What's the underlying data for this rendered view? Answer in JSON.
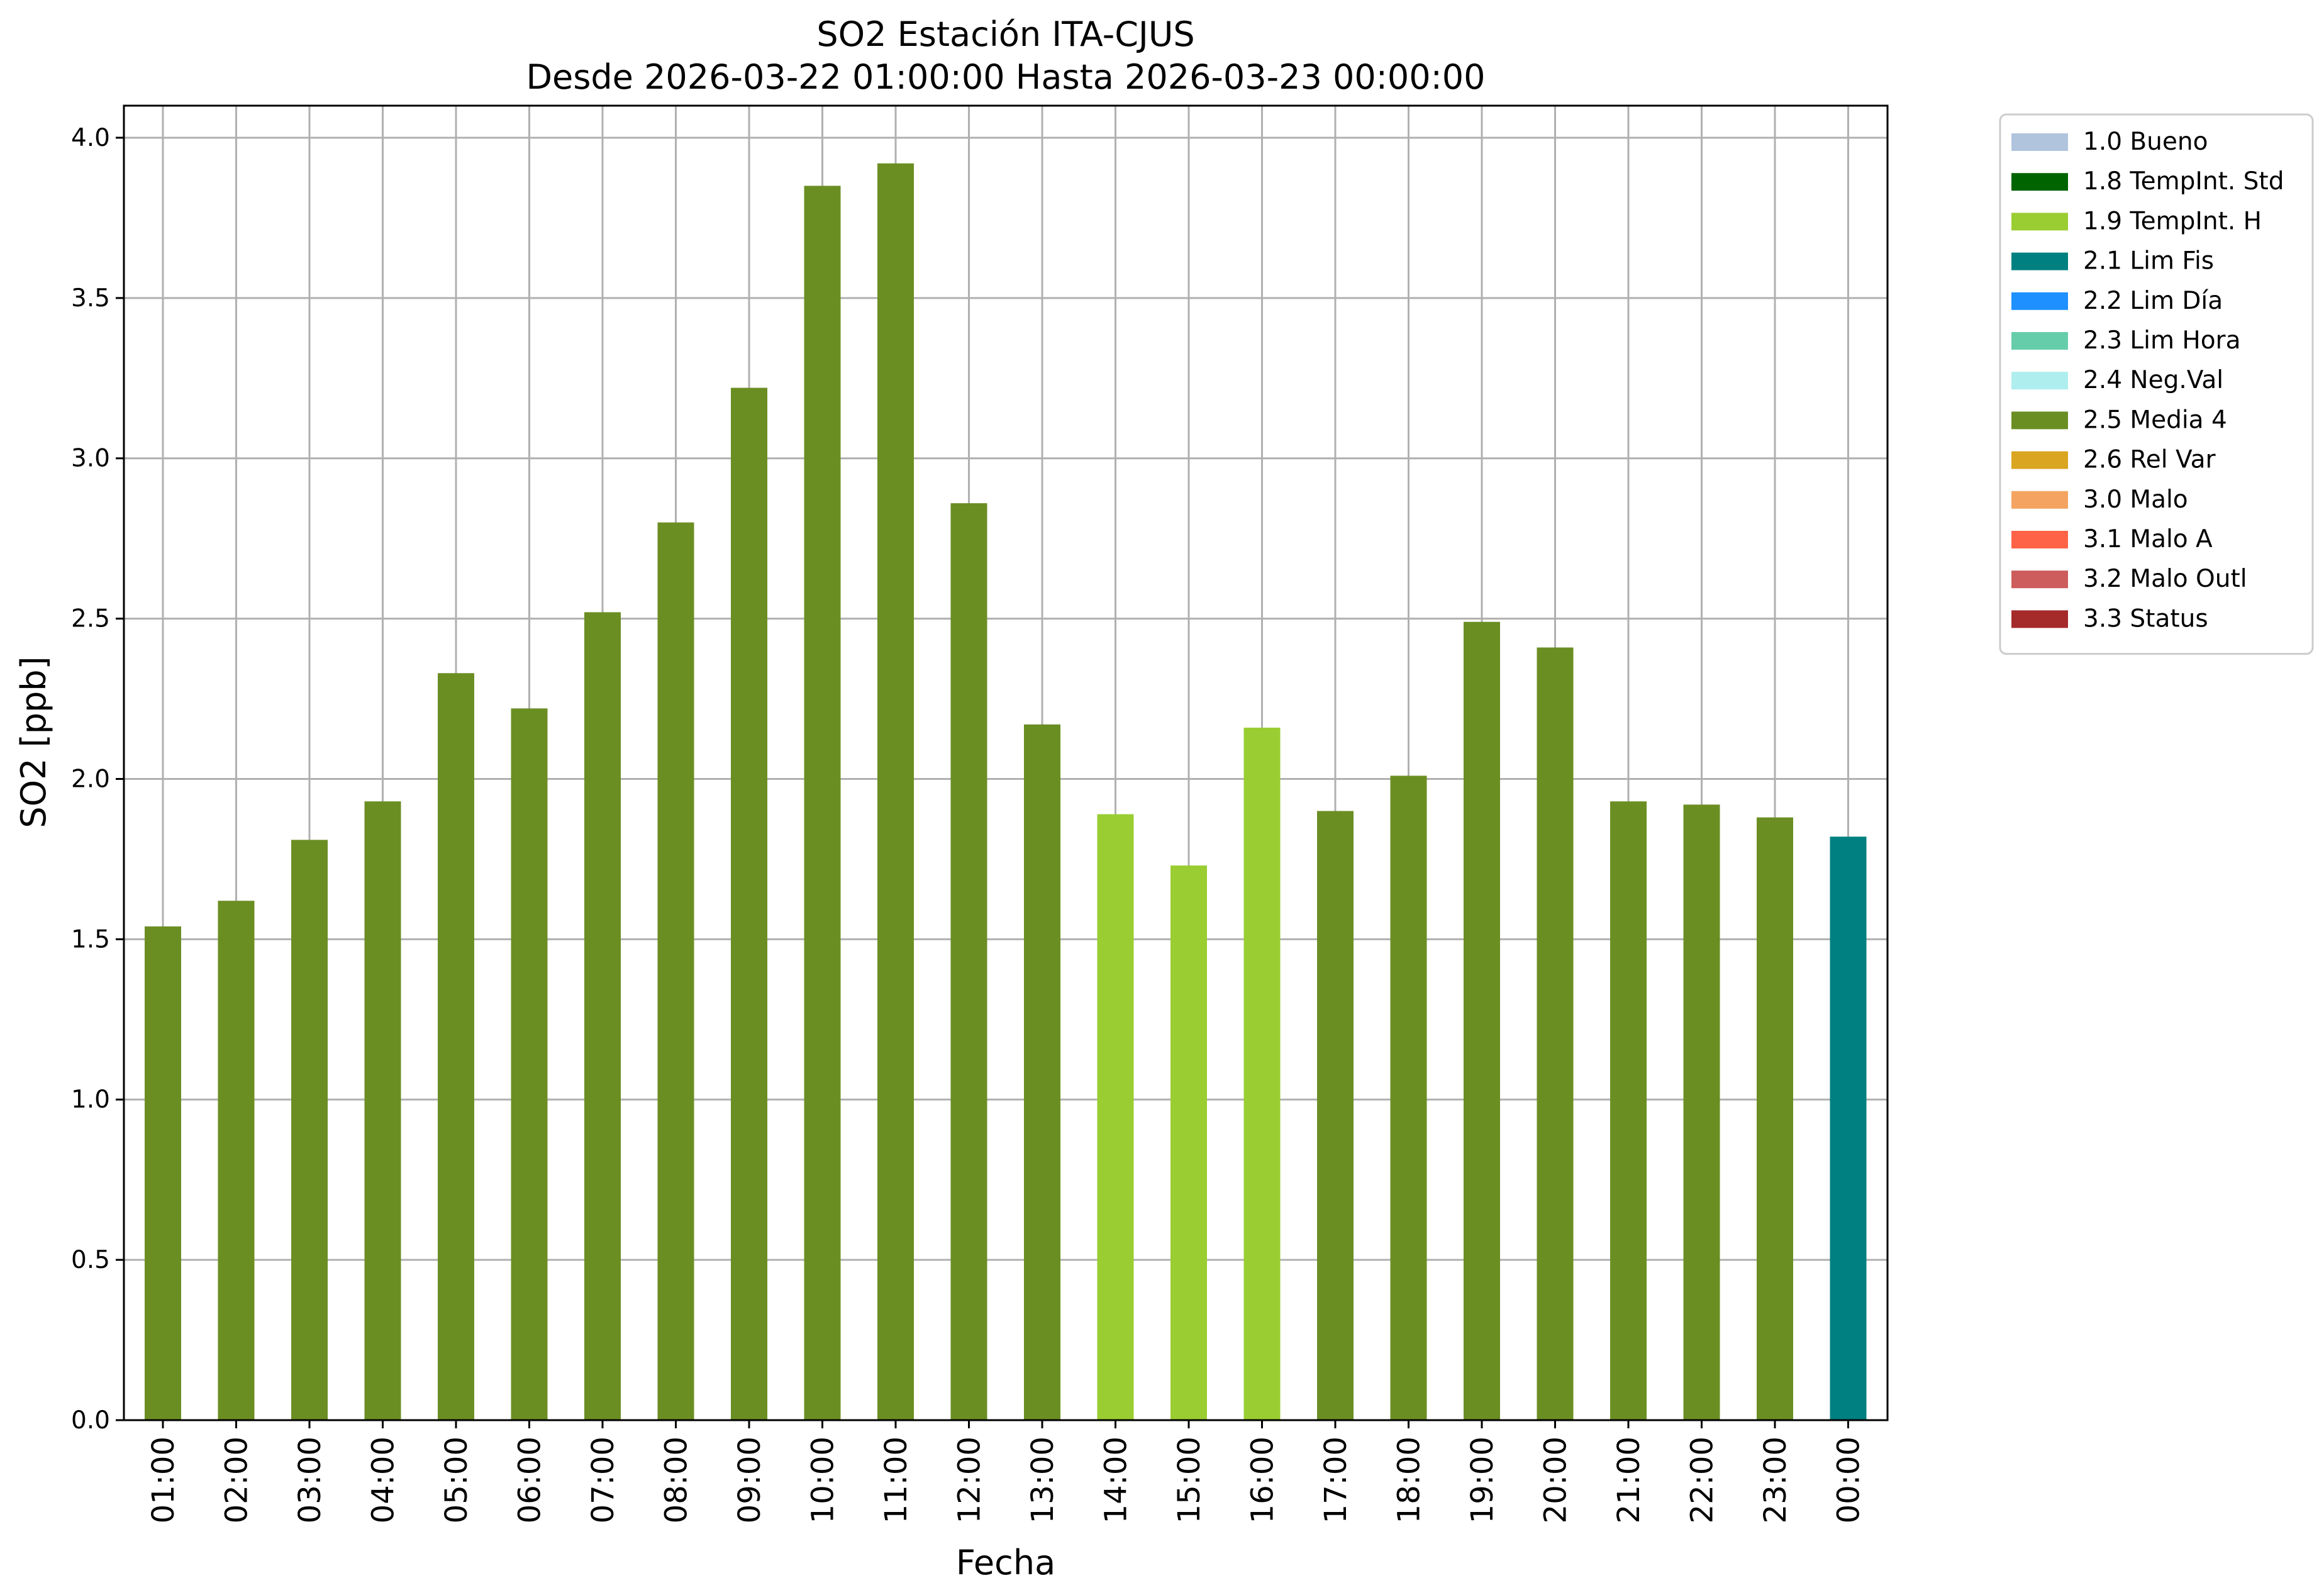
{
  "chart_data": {
    "type": "bar",
    "title": "SO2 Estación ITA-CJUS",
    "subtitle": "Desde 2026-03-22 01:00:00 Hasta 2026-03-23 00:00:00",
    "xlabel": "Fecha",
    "ylabel": "SO2 [ppb]",
    "ylim": [
      0,
      4.1
    ],
    "yticks": [
      "0.0",
      "0.5",
      "1.0",
      "1.5",
      "2.0",
      "2.5",
      "3.0",
      "3.5",
      "4.0"
    ],
    "grid": true,
    "legend_position": "outside-top-right",
    "categories": [
      "01:00",
      "02:00",
      "03:00",
      "04:00",
      "05:00",
      "06:00",
      "07:00",
      "08:00",
      "09:00",
      "10:00",
      "11:00",
      "12:00",
      "13:00",
      "14:00",
      "15:00",
      "16:00",
      "17:00",
      "18:00",
      "19:00",
      "20:00",
      "21:00",
      "22:00",
      "23:00",
      "00:00"
    ],
    "values": [
      1.54,
      1.62,
      1.81,
      1.93,
      2.33,
      2.22,
      2.52,
      2.8,
      3.22,
      3.85,
      3.92,
      2.86,
      2.17,
      1.89,
      1.73,
      2.16,
      1.9,
      2.01,
      2.49,
      2.41,
      1.93,
      1.92,
      1.88,
      1.82
    ],
    "flags": [
      "2.5 Media 4",
      "2.5 Media 4",
      "2.5 Media 4",
      "2.5 Media 4",
      "2.5 Media 4",
      "2.5 Media 4",
      "2.5 Media 4",
      "2.5 Media 4",
      "2.5 Media 4",
      "2.5 Media 4",
      "2.5 Media 4",
      "2.5 Media 4",
      "2.5 Media 4",
      "1.9 TempInt. H",
      "1.9 TempInt. H",
      "1.9 TempInt. H",
      "2.5 Media 4",
      "2.5 Media 4",
      "2.5 Media 4",
      "2.5 Media 4",
      "2.5 Media 4",
      "2.5 Media 4",
      "2.5 Media 4",
      "2.1 Lim Fis"
    ],
    "legend": [
      {
        "label": "1.0 Bueno",
        "color": "#b0c4de"
      },
      {
        "label": "1.8 TempInt. Std",
        "color": "#006400"
      },
      {
        "label": "1.9 TempInt. H",
        "color": "#9acd32"
      },
      {
        "label": "2.1 Lim Fis",
        "color": "#008080"
      },
      {
        "label": "2.2 Lim Día",
        "color": "#1e90ff"
      },
      {
        "label": "2.3 Lim Hora",
        "color": "#66cdaa"
      },
      {
        "label": "2.4 Neg.Val",
        "color": "#afeeee"
      },
      {
        "label": "2.5 Media 4",
        "color": "#6b8e23"
      },
      {
        "label": "2.6 Rel Var",
        "color": "#daa520"
      },
      {
        "label": "3.0 Malo",
        "color": "#f4a460"
      },
      {
        "label": "3.1 Malo A",
        "color": "#ff6347"
      },
      {
        "label": "3.2 Malo Outl",
        "color": "#cd5c5c"
      },
      {
        "label": "3.3 Status",
        "color": "#a52a2a"
      }
    ]
  }
}
